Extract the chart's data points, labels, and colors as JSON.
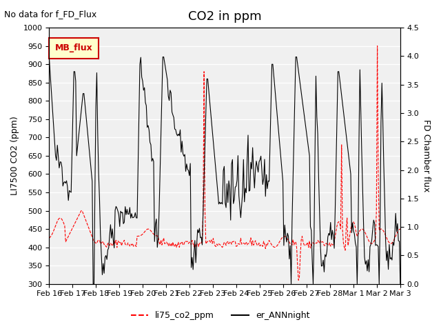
{
  "title": "CO2 in ppm",
  "top_left_text": "No data for f_FD_Flux",
  "ylabel_left": "LI7500 CO2 (ppm)",
  "ylabel_right": "FD Chamber flux",
  "ylim_left": [
    300,
    1000
  ],
  "ylim_right": [
    0.0,
    4.5
  ],
  "yticks_left": [
    300,
    350,
    400,
    450,
    500,
    550,
    600,
    650,
    700,
    750,
    800,
    850,
    900,
    950,
    1000
  ],
  "yticks_right": [
    0.0,
    0.5,
    1.0,
    1.5,
    2.0,
    2.5,
    3.0,
    3.5,
    4.0,
    4.5
  ],
  "xtick_labels": [
    "Feb 16",
    "Feb 17",
    "Feb 18",
    "Feb 19",
    "Feb 20",
    "Feb 21",
    "Feb 22",
    "Feb 23",
    "Feb 24",
    "Feb 25",
    "Feb 26",
    "Feb 27",
    "Feb 28",
    "Mar 1",
    "Mar 2",
    "Mar 3"
  ],
  "line1_color": "red",
  "line2_color": "black",
  "line1_label": "li75_co2_ppm",
  "line2_label": "er_ANNnight",
  "line1_style": "--",
  "line2_style": "-",
  "inset_legend_text": "MB_flux",
  "inset_legend_bg": "#ffffcc",
  "inset_legend_edge": "#cc0000",
  "bg_color": "#e8e8e8",
  "plot_bg": "#f0f0f0",
  "grid_color": "white",
  "title_fontsize": 13,
  "label_fontsize": 9,
  "tick_fontsize": 8
}
